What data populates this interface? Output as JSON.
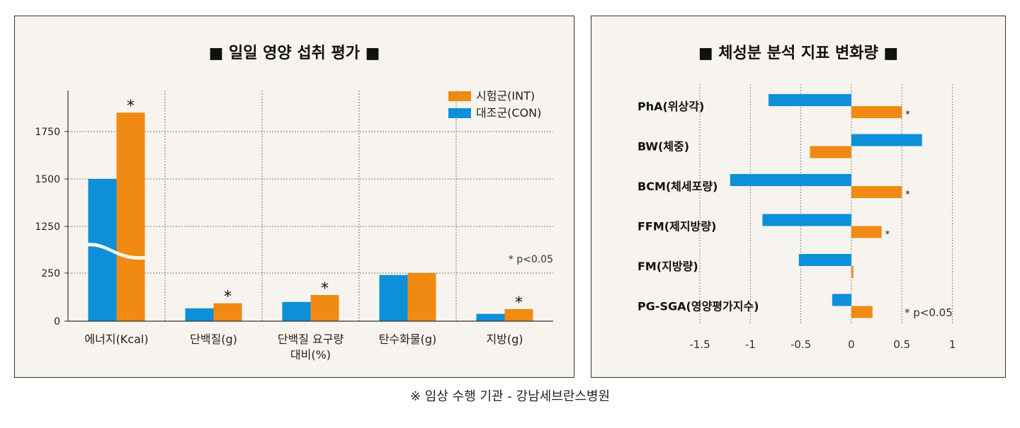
{
  "left_chart": {
    "title": "■ 일일 영양 섭취 평가 ■",
    "chart_data": {
      "type": "bar",
      "categories": [
        "에너지(Kcal)",
        "단백질(g)",
        "단백질 요구량\n대비(%)",
        "탄수화물(g)",
        "지방(g)"
      ],
      "series": [
        {
          "name": "대조군(CON)",
          "values": [
            1500,
            67,
            100,
            240,
            38
          ],
          "color": "#0d8fd9"
        },
        {
          "name": "시험군(INT)",
          "values": [
            1850,
            93,
            136,
            250,
            63
          ],
          "color": "#f08a12"
        }
      ],
      "y_ticks": [
        0,
        250,
        1250,
        1500,
        1750
      ],
      "axis_break": {
        "from": 250,
        "to": 1250
      },
      "significant": [
        "에너지(Kcal)",
        "단백질(g)",
        "단백질 요구량\n대비(%)",
        "지방(g)"
      ],
      "legend_position": "top-right",
      "note": "* p<0.05",
      "star_label": "*"
    }
  },
  "right_chart": {
    "title": "■ 체성분 분석 지표 변화량 ■",
    "chart_data": {
      "type": "bar",
      "orientation": "horizontal",
      "categories": [
        "PhA(위상각)",
        "BW(체중)",
        "BCM(체세포량)",
        "FFM(제지방량)",
        "FM(지방량)",
        "PG-SGA(영양평가지수)"
      ],
      "series": [
        {
          "values": [
            -0.82,
            0.7,
            -1.2,
            -0.88,
            -0.52,
            -0.19
          ],
          "color": "#0d8fd9"
        },
        {
          "values": [
            0.5,
            -0.41,
            0.5,
            0.3,
            0.02,
            0.21
          ],
          "color": "#f08a12"
        }
      ],
      "xlim": [
        -1.5,
        1
      ],
      "x_ticks": [
        "-1.5",
        "-1",
        "-0.5",
        "0",
        "0.5",
        "1"
      ],
      "significant": [
        "PhA(위상각)",
        "BCM(체세포량)",
        "FFM(제지방량)"
      ],
      "note": "* p<0.05",
      "star_label": "*"
    }
  },
  "footer": "※ 임상 수행 기관 - 강남세브란스병원"
}
